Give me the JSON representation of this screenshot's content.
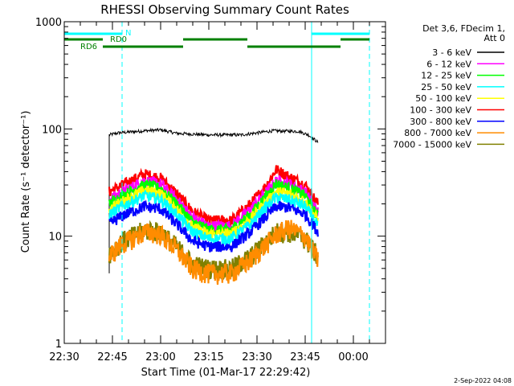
{
  "chart_data": {
    "type": "line",
    "title": "RHESSI Observing Summary Count Rates",
    "xlabel": "Start Time (01-Mar-17 22:29:42)",
    "ylabel": "Count Rate (s⁻¹ detector⁻¹)",
    "y_scale": "log",
    "ylim": [
      1,
      1000
    ],
    "xlim": [
      "22:30",
      "00:10"
    ],
    "x_ticks": [
      "22:30",
      "22:45",
      "23:00",
      "23:15",
      "23:30",
      "23:45",
      "00:00"
    ],
    "y_ticks": [
      "1",
      "10",
      "100",
      "1000"
    ],
    "timestamp": "2-Sep-2022 04:08",
    "legend": {
      "placement": "right",
      "header": [
        "Det 3,6, FDecim 1,",
        "Att 0"
      ],
      "entries": [
        {
          "name": "3 - 6 keV",
          "color": "#000000"
        },
        {
          "name": "6 - 12 keV",
          "color": "#ff00ff"
        },
        {
          "name": "12 - 25 keV",
          "color": "#00ff00"
        },
        {
          "name": "25 - 50 keV",
          "color": "#00ffff"
        },
        {
          "name": "50 - 100 keV",
          "color": "#ffff00"
        },
        {
          "name": "100 - 300 keV",
          "color": "#ff0000"
        },
        {
          "name": "300 - 800 keV",
          "color": "#0000ff"
        },
        {
          "name": "800 - 7000 keV",
          "color": "#ff8c00"
        },
        {
          "name": "7000 - 15000 keV",
          "color": "#808000"
        }
      ]
    },
    "data_start": "22:44",
    "data_end": "23:49",
    "series": [
      {
        "name": "3 - 6 keV",
        "color": "#000000",
        "points": [
          [
            "22:44",
            4.5
          ],
          [
            "22:44",
            88
          ],
          [
            "22:47",
            92
          ],
          [
            "22:55",
            96
          ],
          [
            "23:00",
            98
          ],
          [
            "23:05",
            91
          ],
          [
            "23:15",
            88
          ],
          [
            "23:25",
            88
          ],
          [
            "23:35",
            96
          ],
          [
            "23:43",
            95
          ],
          [
            "23:46",
            88
          ],
          [
            "23:49",
            75
          ]
        ]
      },
      {
        "name": "100 - 300 keV",
        "color": "#ff0000",
        "points": [
          [
            "22:44",
            26
          ],
          [
            "22:48",
            30
          ],
          [
            "22:55",
            38
          ],
          [
            "23:00",
            35
          ],
          [
            "23:05",
            25
          ],
          [
            "23:10",
            17
          ],
          [
            "23:15",
            14
          ],
          [
            "23:22",
            14
          ],
          [
            "23:28",
            20
          ],
          [
            "23:33",
            30
          ],
          [
            "23:36",
            42
          ],
          [
            "23:40",
            36
          ],
          [
            "23:45",
            30
          ],
          [
            "23:49",
            20
          ]
        ]
      },
      {
        "name": "6 - 12 keV",
        "color": "#ff00ff",
        "points": [
          [
            "22:44",
            22
          ],
          [
            "22:48",
            26
          ],
          [
            "22:55",
            33
          ],
          [
            "23:00",
            31
          ],
          [
            "23:05",
            22
          ],
          [
            "23:10",
            15
          ],
          [
            "23:15",
            12.5
          ],
          [
            "23:22",
            12.5
          ],
          [
            "23:28",
            18
          ],
          [
            "23:33",
            26
          ],
          [
            "23:36",
            33
          ],
          [
            "23:40",
            31
          ],
          [
            "23:45",
            26
          ],
          [
            "23:49",
            17
          ]
        ]
      },
      {
        "name": "12 - 25 keV",
        "color": "#00ff00",
        "points": [
          [
            "22:44",
            20
          ],
          [
            "22:48",
            24
          ],
          [
            "22:55",
            30
          ],
          [
            "23:00",
            28
          ],
          [
            "23:05",
            20
          ],
          [
            "23:10",
            13.5
          ],
          [
            "23:15",
            11.5
          ],
          [
            "23:22",
            11.5
          ],
          [
            "23:28",
            16
          ],
          [
            "23:33",
            24
          ],
          [
            "23:36",
            31
          ],
          [
            "23:40",
            28
          ],
          [
            "23:45",
            24
          ],
          [
            "23:49",
            15
          ]
        ]
      },
      {
        "name": "50 - 100 keV",
        "color": "#ffff00",
        "points": [
          [
            "22:44",
            18
          ],
          [
            "22:48",
            21
          ],
          [
            "22:55",
            27
          ],
          [
            "23:00",
            25
          ],
          [
            "23:05",
            18
          ],
          [
            "23:10",
            12
          ],
          [
            "23:15",
            10.5
          ],
          [
            "23:22",
            10.5
          ],
          [
            "23:28",
            14.5
          ],
          [
            "23:33",
            21
          ],
          [
            "23:36",
            26
          ],
          [
            "23:40",
            25
          ],
          [
            "23:45",
            21
          ],
          [
            "23:49",
            14
          ]
        ]
      },
      {
        "name": "25 - 50 keV",
        "color": "#00ffff",
        "points": [
          [
            "22:44",
            16
          ],
          [
            "22:48",
            19
          ],
          [
            "22:55",
            24
          ],
          [
            "23:00",
            22
          ],
          [
            "23:05",
            16
          ],
          [
            "23:10",
            11
          ],
          [
            "23:15",
            9.5
          ],
          [
            "23:22",
            9.5
          ],
          [
            "23:28",
            13
          ],
          [
            "23:33",
            19
          ],
          [
            "23:36",
            23
          ],
          [
            "23:40",
            22
          ],
          [
            "23:45",
            19
          ],
          [
            "23:49",
            12.5
          ]
        ]
      },
      {
        "name": "300 - 800 keV",
        "color": "#0000ff",
        "points": [
          [
            "22:44",
            13
          ],
          [
            "22:48",
            15.5
          ],
          [
            "22:55",
            19
          ],
          [
            "23:00",
            18
          ],
          [
            "23:05",
            13
          ],
          [
            "23:10",
            9
          ],
          [
            "23:15",
            8
          ],
          [
            "23:22",
            8
          ],
          [
            "23:28",
            11
          ],
          [
            "23:33",
            15.5
          ],
          [
            "23:36",
            19
          ],
          [
            "23:40",
            18.5
          ],
          [
            "23:45",
            16
          ],
          [
            "23:49",
            11
          ]
        ]
      },
      {
        "name": "7000 - 15000 keV",
        "color": "#808000",
        "points": [
          [
            "22:44",
            7
          ],
          [
            "22:48",
            9
          ],
          [
            "22:55",
            11.5
          ],
          [
            "23:00",
            11
          ],
          [
            "23:05",
            8
          ],
          [
            "23:10",
            5.5
          ],
          [
            "23:15",
            5
          ],
          [
            "23:22",
            5
          ],
          [
            "23:28",
            6.5
          ],
          [
            "23:33",
            9
          ],
          [
            "23:36",
            11
          ],
          [
            "23:40",
            11
          ],
          [
            "23:45",
            9.5
          ],
          [
            "23:49",
            6.5
          ]
        ]
      },
      {
        "name": "800 - 7000 keV",
        "color": "#ff8c00",
        "points": [
          [
            "22:44",
            6.5
          ],
          [
            "22:48",
            8.5
          ],
          [
            "22:55",
            11
          ],
          [
            "23:00",
            10.5
          ],
          [
            "23:05",
            7.5
          ],
          [
            "23:10",
            5
          ],
          [
            "23:15",
            4.5
          ],
          [
            "23:22",
            4.5
          ],
          [
            "23:28",
            6
          ],
          [
            "23:33",
            8.5
          ],
          [
            "23:36",
            10.5
          ],
          [
            "23:40",
            12
          ],
          [
            "23:45",
            10
          ],
          [
            "23:49",
            6
          ]
        ]
      }
    ],
    "vlines": [
      {
        "time": "22:30",
        "color": "#00ffff",
        "style": "solid"
      },
      {
        "time": "22:48",
        "color": "#00ffff",
        "style": "dashed"
      },
      {
        "time": "23:47",
        "color": "#00ffff",
        "style": "solid"
      },
      {
        "time": "00:05",
        "color": "#00ffff",
        "style": "dashed"
      }
    ],
    "flag_bars": [
      {
        "label": "N",
        "color": "#00ffff",
        "segments": [
          [
            "22:30",
            "22:48"
          ],
          [
            "23:47",
            "00:05"
          ]
        ]
      },
      {
        "label": "RD0",
        "color": "#008000",
        "segments": [
          [
            "22:30",
            "22:42"
          ],
          [
            "23:07",
            "23:27"
          ],
          [
            "23:56",
            "00:05"
          ]
        ]
      },
      {
        "label": "RD6",
        "color": "#008000",
        "segments": [
          [
            "22:42",
            "23:07"
          ],
          [
            "23:27",
            "23:56"
          ]
        ]
      }
    ]
  }
}
